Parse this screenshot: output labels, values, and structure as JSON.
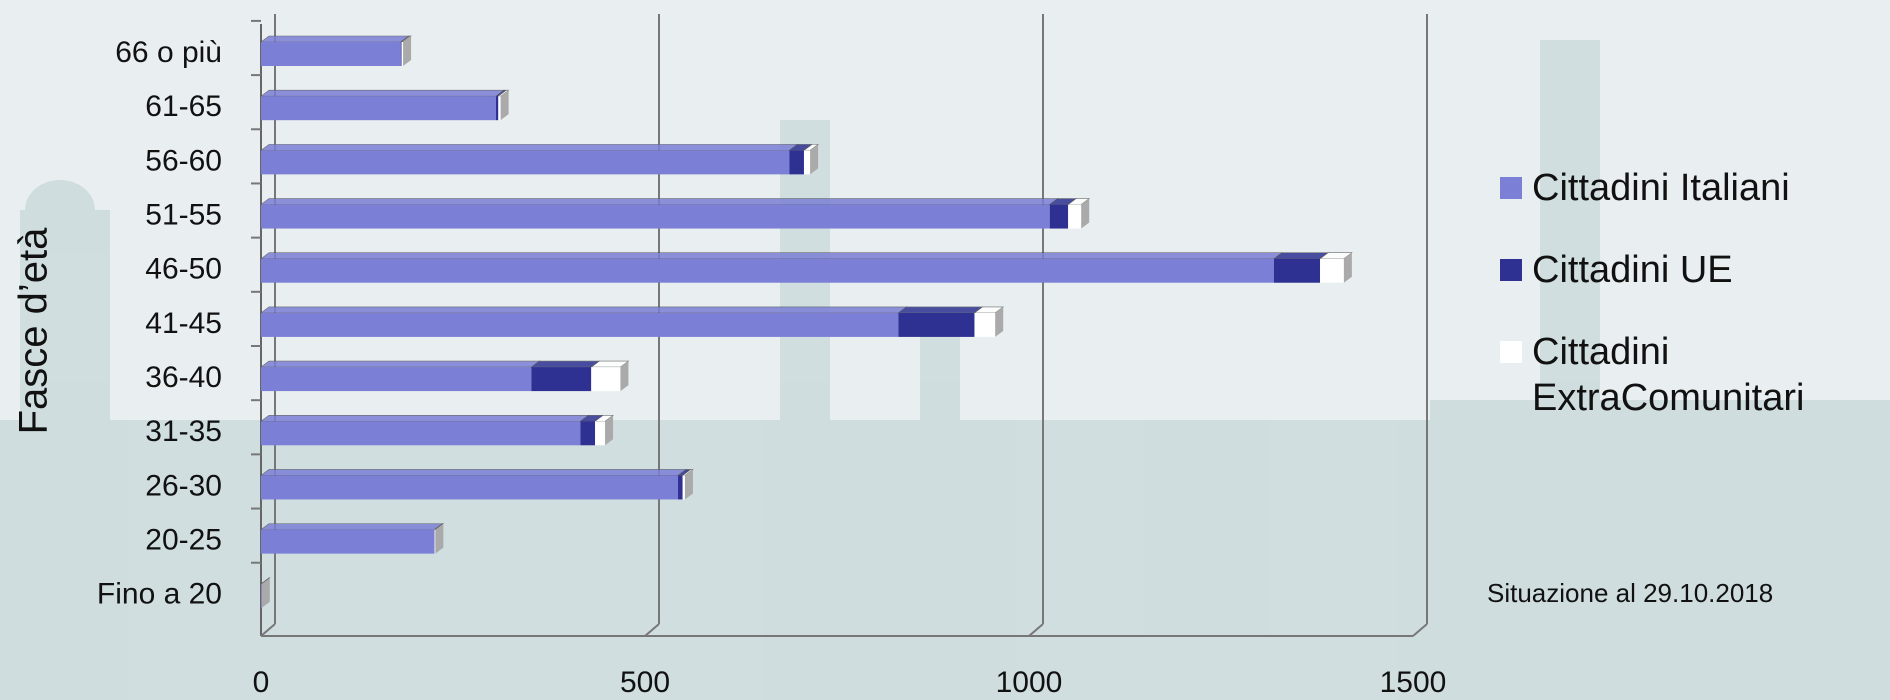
{
  "chart_data": {
    "type": "stacked-bar-horizontal",
    "categories": [
      "66 o più",
      "61-65",
      "56-60",
      "51-55",
      "46-50",
      "41-45",
      "36-40",
      "31-35",
      "26-30",
      "20-25",
      "Fino a 20"
    ],
    "series": [
      {
        "name": "Cittadini Italiani",
        "color": "#7b7fd6",
        "values": [
          182,
          306,
          688,
          1027,
          1319,
          830,
          352,
          416,
          543,
          226,
          1
        ]
      },
      {
        "name": "Cittadini UE",
        "color": "#2e3192",
        "values": [
          1,
          3,
          19,
          24,
          60,
          99,
          78,
          19,
          6,
          0,
          0
        ]
      },
      {
        "name": "Cittadini ExtraComunitari",
        "color": "#ffffff",
        "values": [
          2,
          3,
          8,
          17,
          31,
          27,
          38,
          13,
          3,
          1,
          0
        ]
      }
    ],
    "y_label": "Fasce d’età",
    "xlim": [
      0,
      1500
    ],
    "xticks": [
      0,
      500,
      1000,
      1500
    ],
    "grid": true,
    "note": "Situazione al 29.10.2018"
  }
}
